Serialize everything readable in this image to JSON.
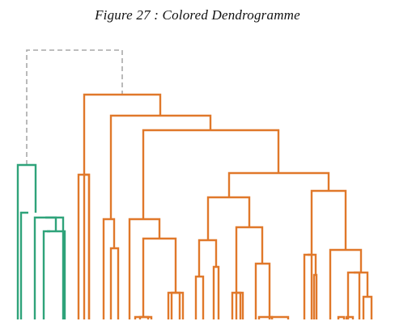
{
  "figure": {
    "caption": "Figure 27 : Colored Dendrogramme"
  },
  "colors": {
    "root_link": "#a9a9a9",
    "cluster_green": "#2fa37a",
    "cluster_orange": "#e0782a"
  },
  "dendrogram": {
    "leaf_count": 45,
    "clusters": [
      {
        "color_key": "cluster_green",
        "leaf_count": 7
      },
      {
        "color_key": "cluster_orange",
        "leaf_count": 38
      }
    ],
    "root_link_style": "dashed"
  }
}
